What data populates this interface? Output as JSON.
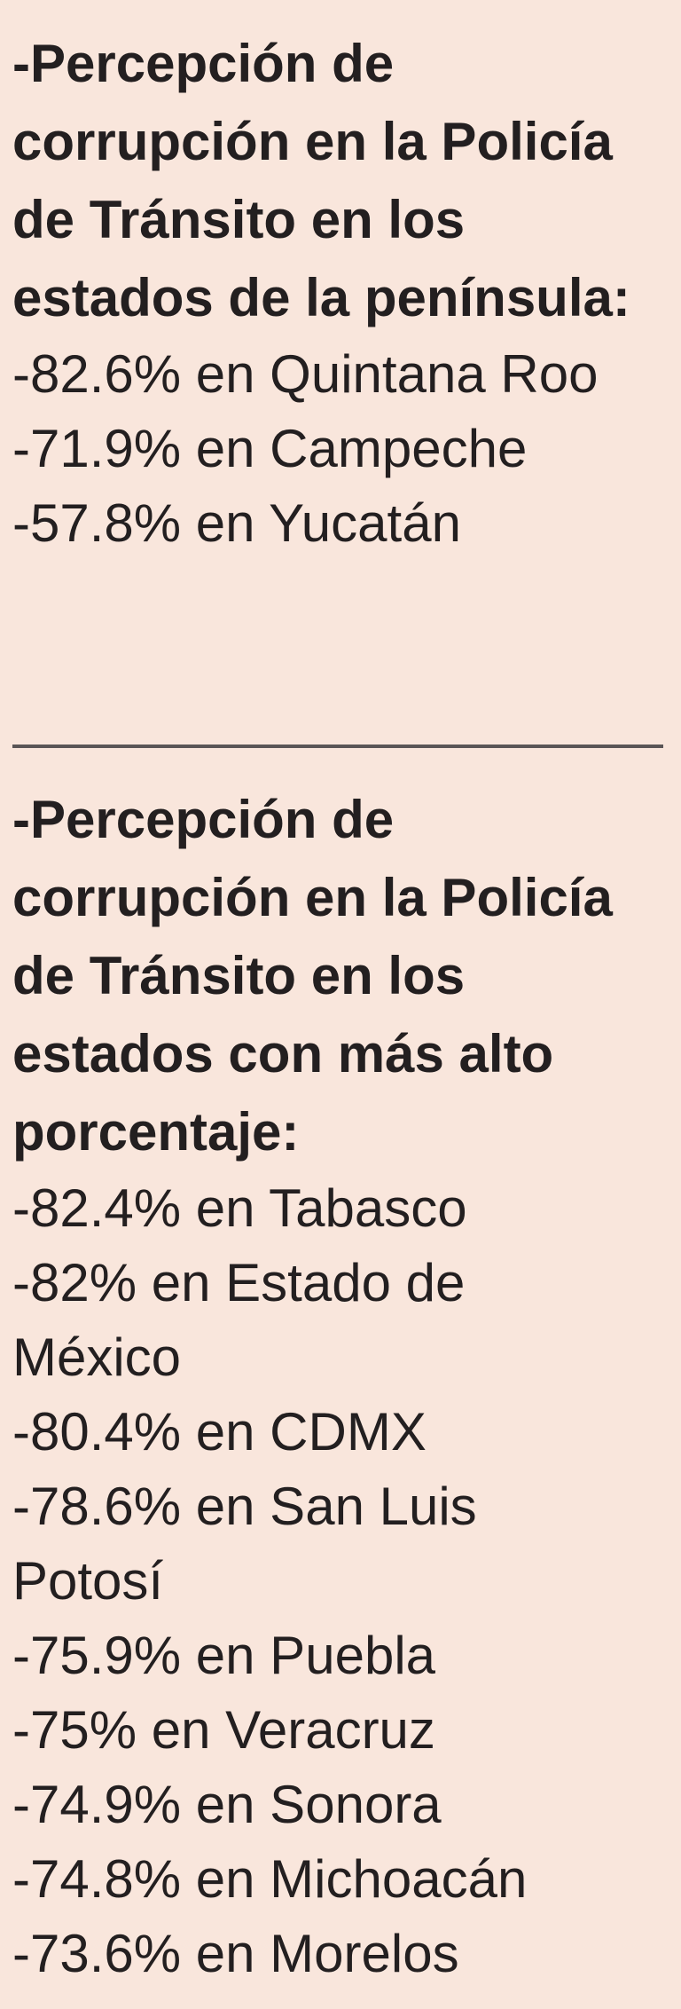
{
  "section_peninsula": {
    "heading": "-Percepción de corrupción en la Policía de Tránsito en los estados de la península:",
    "items": [
      "-82.6% en Quintana Roo",
      "-71.9% en Campeche",
      "-57.8% en Yucatán"
    ]
  },
  "section_highest": {
    "heading": "-Percepción de corrupción en la Policía de Tránsito en los estados con más alto porcentaje:",
    "items": [
      "-82.4% en Tabasco",
      "-82% en Estado de México",
      "-80.4% en CDMX",
      "-78.6% en San Luis Potosí",
      "-75.9% en Puebla",
      "-75% en Veracruz",
      "-74.9% en Sonora",
      "-74.8% en Michoacán",
      "-73.6% en Morelos"
    ]
  },
  "colors": {
    "background": "#f9e6dc",
    "text": "#231f20",
    "divider": "#5a5556"
  }
}
